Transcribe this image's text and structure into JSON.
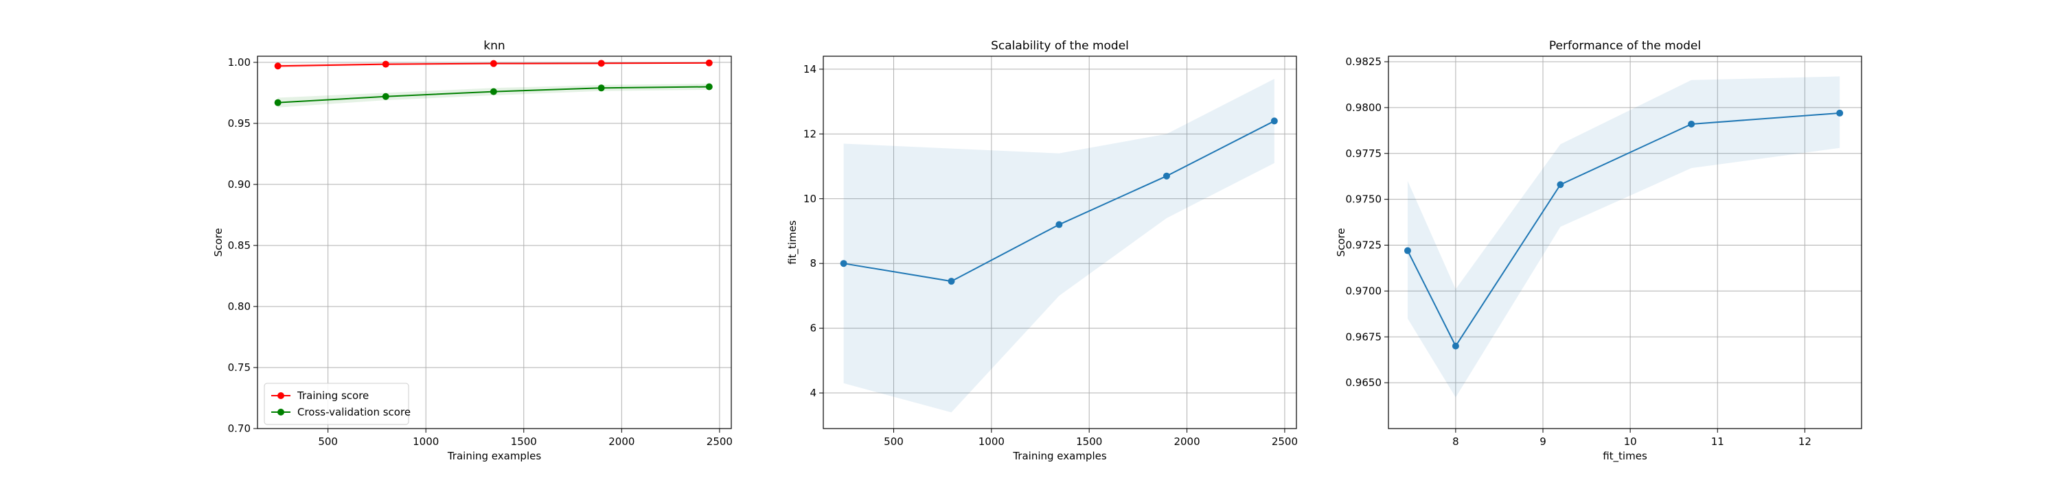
{
  "chart_data": [
    {
      "type": "line",
      "title": "knn",
      "xlabel": "Training examples",
      "ylabel": "Score",
      "xlim": [
        140,
        2560
      ],
      "ylim": [
        0.7,
        1.005
      ],
      "xticks": [
        500,
        1000,
        1500,
        2000,
        2500
      ],
      "xtick_labels": [
        "500",
        "1000",
        "1500",
        "2000",
        "2500"
      ],
      "yticks": [
        0.7,
        0.75,
        0.8,
        0.85,
        0.9,
        0.95,
        1.0
      ],
      "ytick_labels": [
        "0.70",
        "0.75",
        "0.80",
        "0.85",
        "0.90",
        "0.95",
        "1.00"
      ],
      "grid": true,
      "legend": "lower-left",
      "x": [
        244,
        795,
        1346,
        1896,
        2447
      ],
      "series": [
        {
          "name": "Training score",
          "color": "#ff0000",
          "values": [
            0.997,
            0.9985,
            0.999,
            0.9992,
            0.9995
          ],
          "band_lower": [
            0.9955,
            0.9975,
            0.9983,
            0.9985,
            0.999
          ],
          "band_upper": [
            0.9985,
            0.9995,
            0.9997,
            0.9998,
            1.0
          ]
        },
        {
          "name": "Cross-validation score",
          "color": "#008000",
          "values": [
            0.967,
            0.972,
            0.976,
            0.979,
            0.98
          ],
          "band_lower": [
            0.963,
            0.969,
            0.973,
            0.9765,
            0.9775
          ],
          "band_upper": [
            0.971,
            0.975,
            0.979,
            0.9815,
            0.9825
          ]
        }
      ]
    },
    {
      "type": "line",
      "title": "Scalability of the model",
      "xlabel": "Training examples",
      "ylabel": "fit_times",
      "xlim": [
        140,
        2560
      ],
      "ylim": [
        2.9,
        14.4
      ],
      "xticks": [
        500,
        1000,
        1500,
        2000,
        2500
      ],
      "xtick_labels": [
        "500",
        "1000",
        "1500",
        "2000",
        "2500"
      ],
      "yticks": [
        4,
        6,
        8,
        10,
        12,
        14
      ],
      "ytick_labels": [
        "4",
        "6",
        "8",
        "10",
        "12",
        "14"
      ],
      "grid": true,
      "x": [
        244,
        795,
        1346,
        1896,
        2447
      ],
      "series": [
        {
          "color": "#1f77b4",
          "values": [
            8.0,
            7.45,
            9.2,
            10.7,
            12.4
          ],
          "band_lower": [
            4.3,
            3.4,
            7.0,
            9.4,
            11.1
          ],
          "band_upper": [
            11.7,
            11.55,
            11.4,
            12.0,
            13.7
          ]
        }
      ]
    },
    {
      "type": "line",
      "title": "Performance of the model",
      "xlabel": "fit_times",
      "ylabel": "Score",
      "xlim": [
        7.23,
        12.65
      ],
      "ylim": [
        0.9625,
        0.9828
      ],
      "xticks": [
        8,
        9,
        10,
        11,
        12
      ],
      "xtick_labels": [
        "8",
        "9",
        "10",
        "11",
        "12"
      ],
      "yticks": [
        0.965,
        0.9675,
        0.97,
        0.9725,
        0.975,
        0.9775,
        0.98,
        0.9825
      ],
      "ytick_labels": [
        "0.9650",
        "0.9675",
        "0.9700",
        "0.9725",
        "0.9750",
        "0.9775",
        "0.9800",
        "0.9825"
      ],
      "grid": true,
      "x": [
        7.45,
        8.0,
        9.2,
        10.7,
        12.4
      ],
      "series": [
        {
          "color": "#1f77b4",
          "values": [
            0.9722,
            0.967,
            0.9758,
            0.9791,
            0.9797
          ],
          "band_lower": [
            0.9685,
            0.9642,
            0.9735,
            0.9767,
            0.9778
          ],
          "band_upper": [
            0.976,
            0.9701,
            0.978,
            0.9815,
            0.9817
          ]
        }
      ]
    }
  ]
}
